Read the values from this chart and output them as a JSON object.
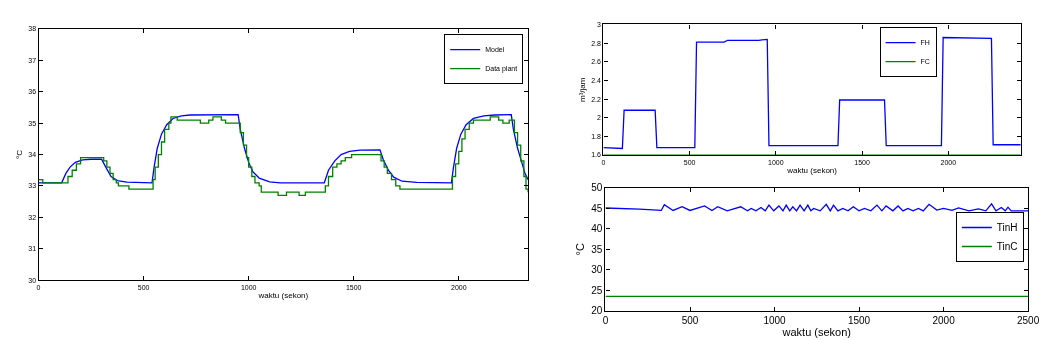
{
  "chart_data": [
    {
      "type": "line",
      "xlabel": "waktu (sekon)",
      "ylabel": "°C",
      "xlim": [
        0,
        2330
      ],
      "xticks": [
        0,
        500,
        1000,
        1500,
        2000
      ],
      "ylim": [
        30,
        38
      ],
      "yticks": [
        30,
        31,
        32,
        33,
        34,
        35,
        36,
        37,
        38
      ],
      "legend": "top right",
      "marker": "none",
      "line_style": "solid",
      "series": [
        {
          "name": "Model",
          "color": "#0000ff",
          "x": [
            0,
            110,
            130,
            150,
            175,
            210,
            250,
            300,
            320,
            345,
            375,
            420,
            540,
            550,
            565,
            585,
            610,
            640,
            680,
            720,
            950,
            960,
            980,
            1000,
            1020,
            1050,
            1100,
            1150,
            1360,
            1380,
            1410,
            1440,
            1480,
            1530,
            1625,
            1640,
            1665,
            1690,
            1730,
            1800,
            1965,
            1975,
            1990,
            2010,
            2035,
            2070,
            2120,
            2170,
            2250,
            2260,
            2280,
            2300,
            2315,
            2330
          ],
          "values": [
            33.1,
            33.1,
            33.4,
            33.6,
            33.75,
            33.83,
            33.85,
            33.85,
            33.6,
            33.3,
            33.17,
            33.12,
            33.1,
            33.6,
            34.2,
            34.65,
            34.95,
            35.15,
            35.23,
            35.26,
            35.27,
            34.8,
            34.2,
            33.75,
            33.45,
            33.25,
            33.13,
            33.1,
            33.1,
            33.5,
            33.8,
            34.0,
            34.1,
            34.14,
            34.15,
            33.85,
            33.5,
            33.28,
            33.15,
            33.11,
            33.1,
            33.6,
            34.2,
            34.65,
            34.95,
            35.15,
            35.23,
            35.26,
            35.27,
            34.8,
            34.2,
            33.75,
            33.4,
            33.2
          ]
        },
        {
          "name": "Data plant",
          "color": "#008000",
          "type": "step",
          "x": [
            0,
            20,
            130,
            140,
            160,
            180,
            200,
            310,
            325,
            340,
            355,
            370,
            380,
            430,
            545,
            555,
            570,
            585,
            600,
            620,
            630,
            660,
            770,
            810,
            830,
            870,
            890,
            960,
            975,
            990,
            1000,
            1015,
            1030,
            1050,
            1060,
            1140,
            1180,
            1240,
            1270,
            1365,
            1380,
            1400,
            1420,
            1440,
            1460,
            1490,
            1630,
            1645,
            1660,
            1680,
            1700,
            1720,
            1970,
            1985,
            2000,
            2015,
            2030,
            2050,
            2070,
            2150,
            2190,
            2210,
            2240,
            2265,
            2280,
            2295,
            2310,
            2320,
            2330
          ],
          "values": [
            33.2,
            33.1,
            33.1,
            33.3,
            33.5,
            33.7,
            33.9,
            33.8,
            33.6,
            33.4,
            33.2,
            33.1,
            33.0,
            32.9,
            33.2,
            33.6,
            34.0,
            34.4,
            34.8,
            35.0,
            35.2,
            35.1,
            35.0,
            35.1,
            35.2,
            35.1,
            35.0,
            34.7,
            34.3,
            33.9,
            33.6,
            33.3,
            33.1,
            33.0,
            32.8,
            32.7,
            32.8,
            32.7,
            32.8,
            33.0,
            33.3,
            33.6,
            33.7,
            33.8,
            33.9,
            34.0,
            33.8,
            33.6,
            33.4,
            33.2,
            33.0,
            32.9,
            33.3,
            33.7,
            34.1,
            34.5,
            34.8,
            35.0,
            35.1,
            35.2,
            35.1,
            35.0,
            35.1,
            34.7,
            34.3,
            33.8,
            33.3,
            32.9,
            32.8
          ]
        }
      ]
    },
    {
      "type": "line",
      "xlabel": "waktu (sekon)",
      "ylabel": "m³/jam",
      "xlim": [
        0,
        2420
      ],
      "xticks": [
        0,
        500,
        1000,
        1500,
        2000
      ],
      "ylim": [
        1.6,
        3
      ],
      "yticks": [
        1.6,
        1.8,
        2,
        2.2,
        2.4,
        2.6,
        2.8,
        3
      ],
      "legend": "top",
      "marker": "none",
      "line_style": "solid",
      "series": [
        {
          "name": "FH",
          "color": "#0000ff",
          "x": [
            0,
            110,
            120,
            300,
            310,
            530,
            540,
            700,
            720,
            900,
            950,
            960,
            1360,
            1370,
            1630,
            1640,
            1960,
            1970,
            2250,
            2260,
            2420
          ],
          "values": [
            1.68,
            1.67,
            2.08,
            2.08,
            1.68,
            1.68,
            2.81,
            2.81,
            2.83,
            2.83,
            2.84,
            1.7,
            1.7,
            2.19,
            2.19,
            1.7,
            1.7,
            2.86,
            2.85,
            1.71,
            1.71
          ]
        },
        {
          "name": "FC",
          "color": "#008000",
          "x": [
            0,
            2420
          ],
          "values": [
            1.6,
            1.6
          ]
        }
      ]
    },
    {
      "type": "line",
      "xlabel": "waktu (sekon)",
      "ylabel": "°C",
      "xlim": [
        0,
        2500
      ],
      "xticks": [
        0,
        500,
        1000,
        1500,
        2000,
        2500
      ],
      "ylim": [
        20,
        50
      ],
      "yticks": [
        20,
        25,
        30,
        35,
        40,
        45,
        50
      ],
      "legend": "right",
      "marker": "none",
      "line_style": "solid",
      "series": [
        {
          "name": "TinH",
          "color": "#0000ff",
          "x": [
            0,
            200,
            330,
            348,
            400,
            453,
            500,
            586,
            630,
            664,
            720,
            800,
            840,
            862,
            890,
            920,
            945,
            967,
            995,
            1026,
            1050,
            1069,
            1090,
            1108,
            1130,
            1151,
            1175,
            1197,
            1215,
            1232,
            1270,
            1306,
            1330,
            1349,
            1375,
            1404,
            1435,
            1466,
            1500,
            1532,
            1570,
            1606,
            1635,
            1660,
            1700,
            1731,
            1760,
            1789,
            1820,
            1851,
            1880,
            1914,
            1960,
            2000,
            2050,
            2089,
            2150,
            2206,
            2250,
            2284,
            2310,
            2342,
            2365,
            2381,
            2400,
            2500
          ],
          "values": [
            45.1,
            44.8,
            44.5,
            45.9,
            44.5,
            45.4,
            44.5,
            45.6,
            44.5,
            45.4,
            44.4,
            45.4,
            44.4,
            45.0,
            44.4,
            45.2,
            44.4,
            45.8,
            44.4,
            45.6,
            44.4,
            45.8,
            44.4,
            45.4,
            44.4,
            45.8,
            44.4,
            45.8,
            44.4,
            45.0,
            44.4,
            46.0,
            44.4,
            45.8,
            44.4,
            45.0,
            44.4,
            45.4,
            44.4,
            45.0,
            44.4,
            45.8,
            44.4,
            45.6,
            44.4,
            45.6,
            44.4,
            45.0,
            44.4,
            45.0,
            44.4,
            46.0,
            44.6,
            45.0,
            44.5,
            45.1,
            44.4,
            44.9,
            44.4,
            46.1,
            44.4,
            45.2,
            44.4,
            45.3,
            44.4,
            44.4
          ]
        },
        {
          "name": "TinC",
          "color": "#008000",
          "x": [
            0,
            2500
          ],
          "values": [
            23.5,
            23.5
          ]
        }
      ]
    }
  ]
}
